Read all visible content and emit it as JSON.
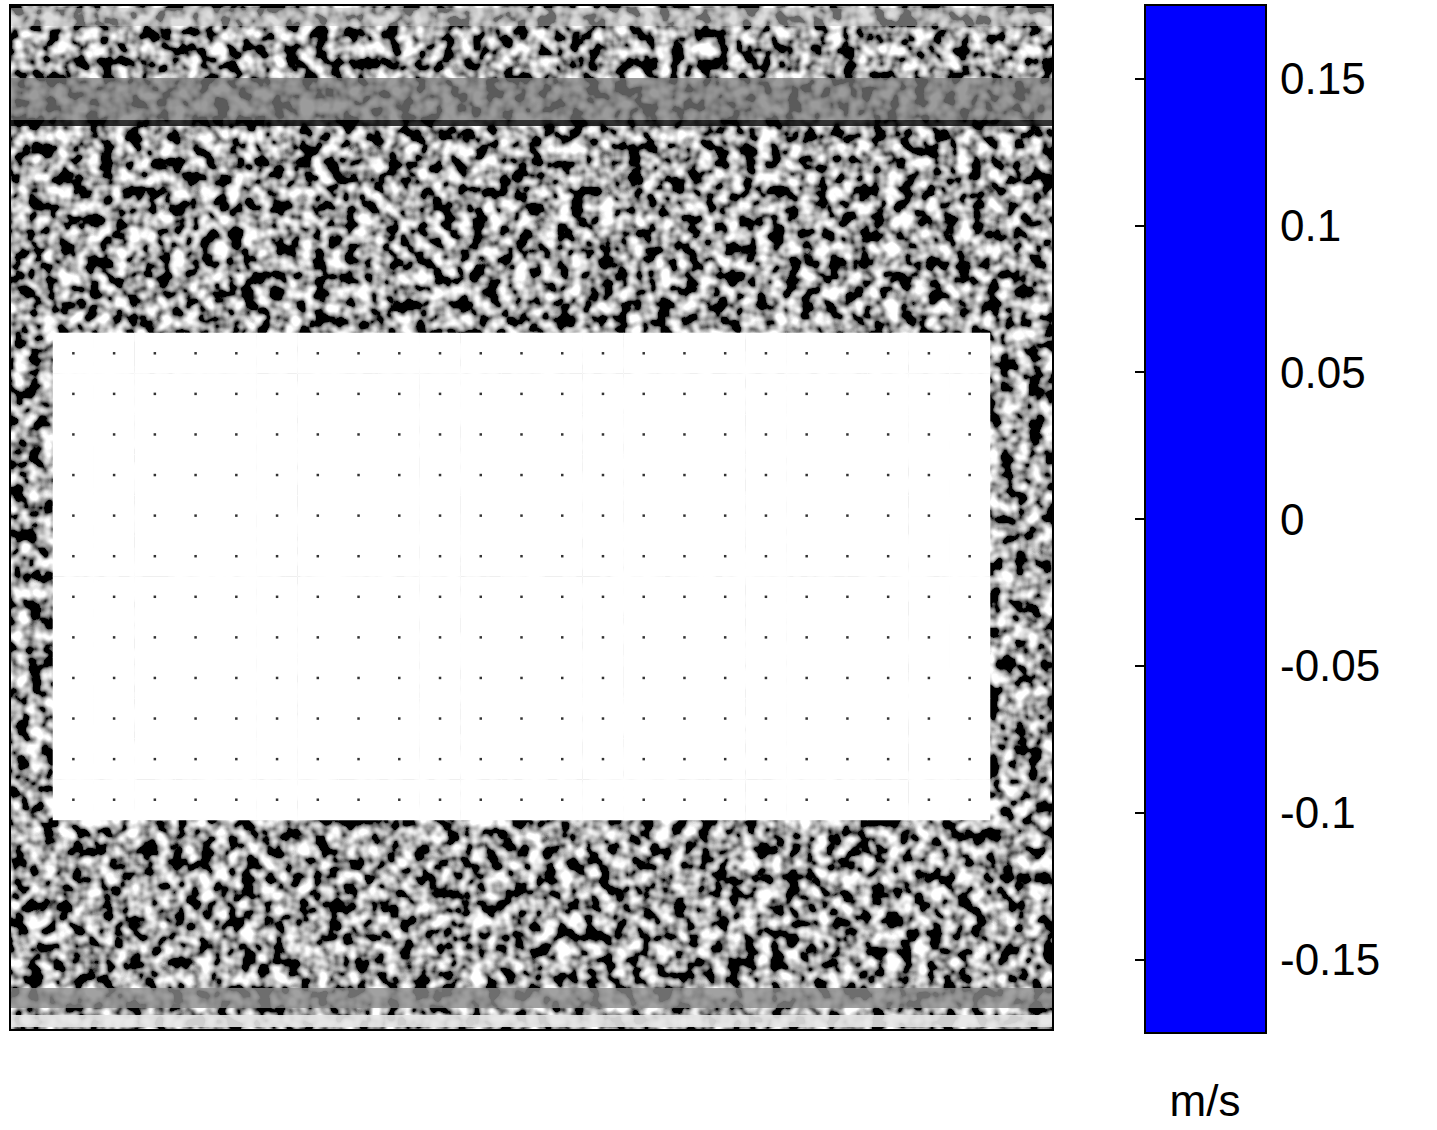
{
  "chart_data": {
    "type": "heatmap",
    "cells": [
      [
        0,
        0,
        0,
        0,
        0,
        0,
        0,
        0,
        0,
        0,
        0,
        0,
        0,
        0,
        0,
        0,
        0,
        0,
        0,
        0,
        0,
        0,
        0
      ],
      [
        0,
        0,
        0,
        0,
        0,
        0,
        0,
        0,
        0,
        0,
        0,
        0,
        0,
        0,
        0,
        0,
        0,
        0,
        0,
        0,
        0,
        0,
        0
      ],
      [
        0,
        0,
        0,
        0,
        0,
        0,
        0,
        0,
        0,
        0,
        0,
        0,
        0,
        0,
        0,
        0,
        0,
        0,
        0,
        0,
        0,
        0,
        0
      ],
      [
        0,
        0,
        0,
        0,
        0,
        0,
        0,
        0,
        0,
        0,
        0,
        0,
        0,
        0,
        0,
        0,
        0,
        0,
        0,
        0,
        0,
        0,
        0
      ],
      [
        0,
        0,
        0,
        0,
        0,
        0,
        0,
        0,
        0,
        0,
        0,
        0,
        0,
        0,
        0,
        0,
        0,
        0,
        0,
        0,
        0,
        0,
        0
      ],
      [
        0,
        0,
        0,
        0,
        0,
        0,
        0,
        0,
        0,
        0,
        0,
        0,
        0,
        0,
        0,
        0,
        0,
        0,
        0,
        0,
        0,
        0,
        0
      ],
      [
        0,
        0,
        0,
        0,
        0,
        0,
        0,
        0,
        0,
        0,
        0,
        0,
        0,
        0,
        0,
        0,
        0,
        0,
        0,
        0,
        0,
        0,
        0
      ],
      [
        0,
        0,
        0,
        0,
        0,
        0,
        0,
        0,
        0,
        0,
        0,
        0,
        0,
        0,
        0,
        0,
        0,
        0,
        0,
        0,
        0,
        0,
        0
      ],
      [
        0,
        0,
        0,
        0,
        0,
        0,
        0,
        0,
        0,
        0,
        0,
        0,
        0,
        0,
        0,
        0,
        0,
        0,
        0,
        0,
        0,
        0,
        0
      ],
      [
        0,
        0,
        0,
        0,
        0,
        0,
        0,
        0,
        0,
        0,
        0,
        0,
        0,
        0,
        0,
        0,
        0,
        0,
        0,
        0,
        0,
        0,
        0
      ],
      [
        0,
        0,
        0,
        0,
        0,
        0,
        0,
        0,
        0,
        0,
        0,
        0,
        0,
        0,
        0,
        0,
        0,
        0,
        0,
        0,
        0,
        0,
        0
      ],
      [
        0,
        0,
        0,
        0,
        0,
        0,
        0,
        0,
        0,
        0,
        0,
        0,
        0,
        0,
        0,
        0,
        0,
        0,
        0,
        0,
        0,
        0,
        0
      ]
    ],
    "colorbar": {
      "range": [
        -0.175,
        0.175
      ],
      "ticks": [
        -0.15,
        -0.1,
        -0.05,
        0,
        0.05,
        0.1,
        0.15
      ],
      "label": "m/s",
      "colors": [
        "#0000ff",
        "#ffffff",
        "#ff0000"
      ]
    }
  }
}
